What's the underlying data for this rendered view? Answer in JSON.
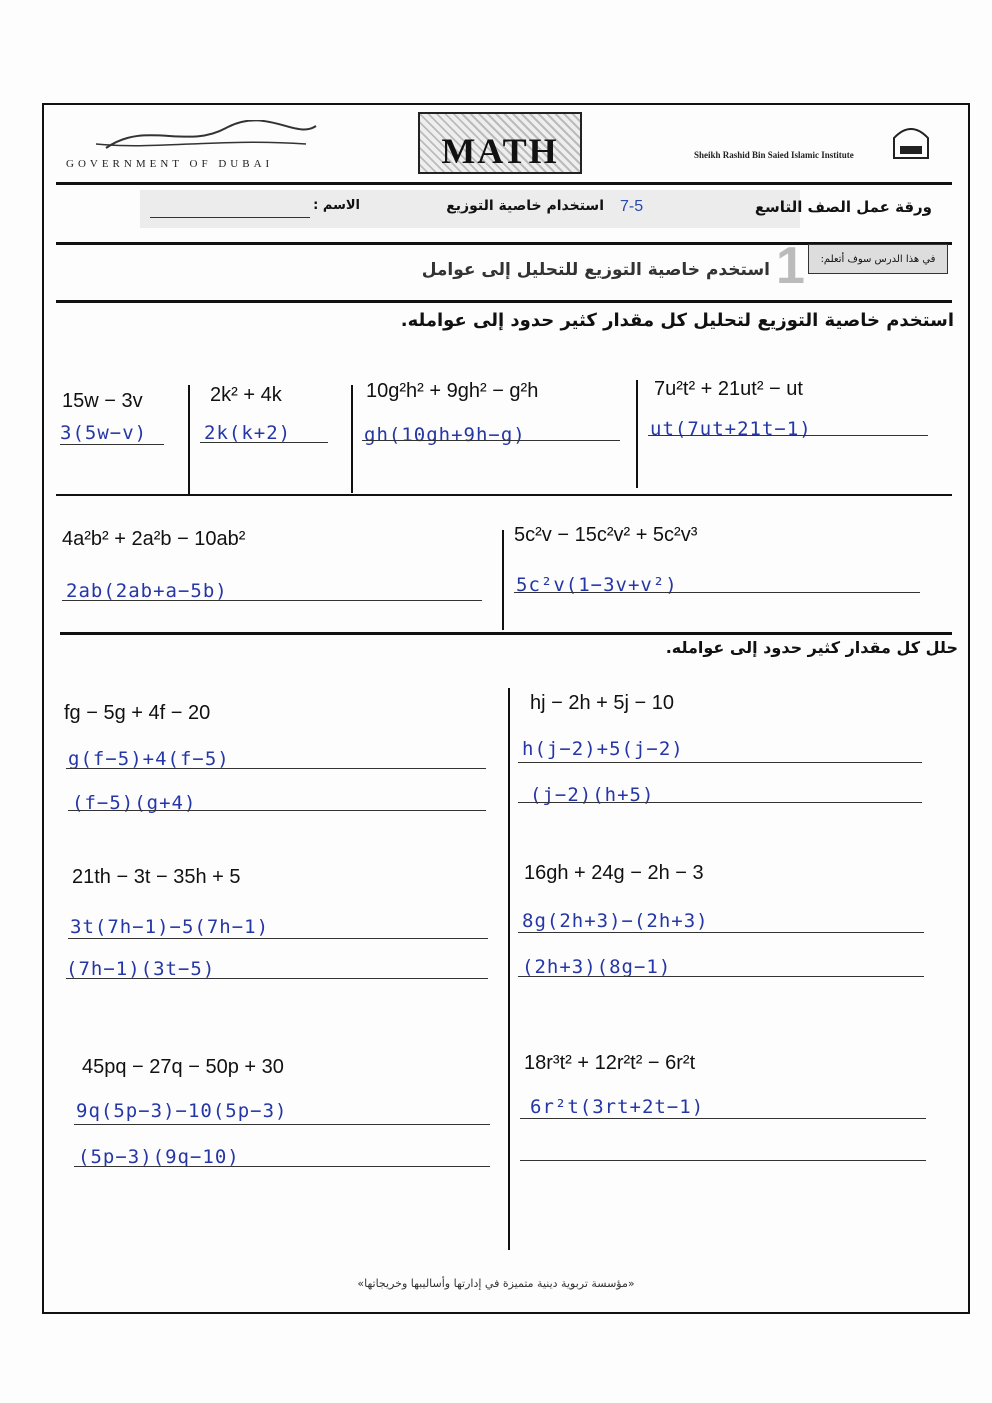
{
  "header": {
    "left_logo": "GOVERNMENT OF DUBAI",
    "center_logo": "MATH",
    "right_logo": "Sheikh Rashid Bin Saied Islamic Institute",
    "worksheet_title": "ورقة عمل الصف التاسع",
    "lesson_number": "7-5",
    "lesson_title": "استخدام خاصية التوزيع",
    "name_label": "الاسم :",
    "accent_color": "#2b4aa8"
  },
  "objective": {
    "label": "في هذا الدرس سوف أتعلم:",
    "number": "1",
    "text": "استخدم خاصية التوزيع للتحليل إلى عوامل"
  },
  "section1": {
    "instruction": "استخدم خاصية التوزيع لتحليل كل مقدار كثير حدود إلى عوامله.",
    "problems": [
      {
        "expr": "15w − 3v",
        "answer": "3(5w−v)"
      },
      {
        "expr": "2k² + 4k",
        "answer": "2k(k+2)"
      },
      {
        "expr": "10g²h² + 9gh² − g²h",
        "answer": "gh(10gh+9h−g)"
      },
      {
        "expr": "7u²t² + 21ut² − ut",
        "answer": "ut(7ut+21t−1)"
      },
      {
        "expr": "4a²b² + 2a²b − 10ab²",
        "answer": "2ab(2ab+a−5b)"
      },
      {
        "expr": "5c²v − 15c²v² + 5c²v³",
        "answer": "5c²v(1−3v+v²)"
      }
    ]
  },
  "section2": {
    "instruction": "حلل كل مقدار كثير حدود إلى عوامله.",
    "problems": [
      {
        "expr": "fg − 5g + 4f − 20",
        "step1": "g(f−5)+4(f−5)",
        "step2": "(f−5)(g+4)"
      },
      {
        "expr": "hj − 2h + 5j − 10",
        "step1": "h(j−2)+5(j−2)",
        "step2": "(j−2)(h+5)"
      },
      {
        "expr": "21th − 3t − 35h + 5",
        "step1": "3t(7h−1)−5(7h−1)",
        "step2": "(7h−1)(3t−5)"
      },
      {
        "expr": "16gh + 24g − 2h − 3",
        "step1": "8g(2h+3)−(2h+3)",
        "step2": "(2h+3)(8g−1)"
      },
      {
        "expr": "45pq − 27q − 50p + 30",
        "step1": "9q(5p−3)−10(5p−3)",
        "step2": "(5p−3)(9q−10)"
      },
      {
        "expr": "18r³t² + 12r²t² − 6r²t",
        "step1": "6r²t(3rt+2t−1)",
        "step2": ""
      }
    ]
  },
  "footer": {
    "motto": "«مؤسسة تربوية دينية متميزة في إدارتها وأساليبها وخريجاتها»"
  }
}
